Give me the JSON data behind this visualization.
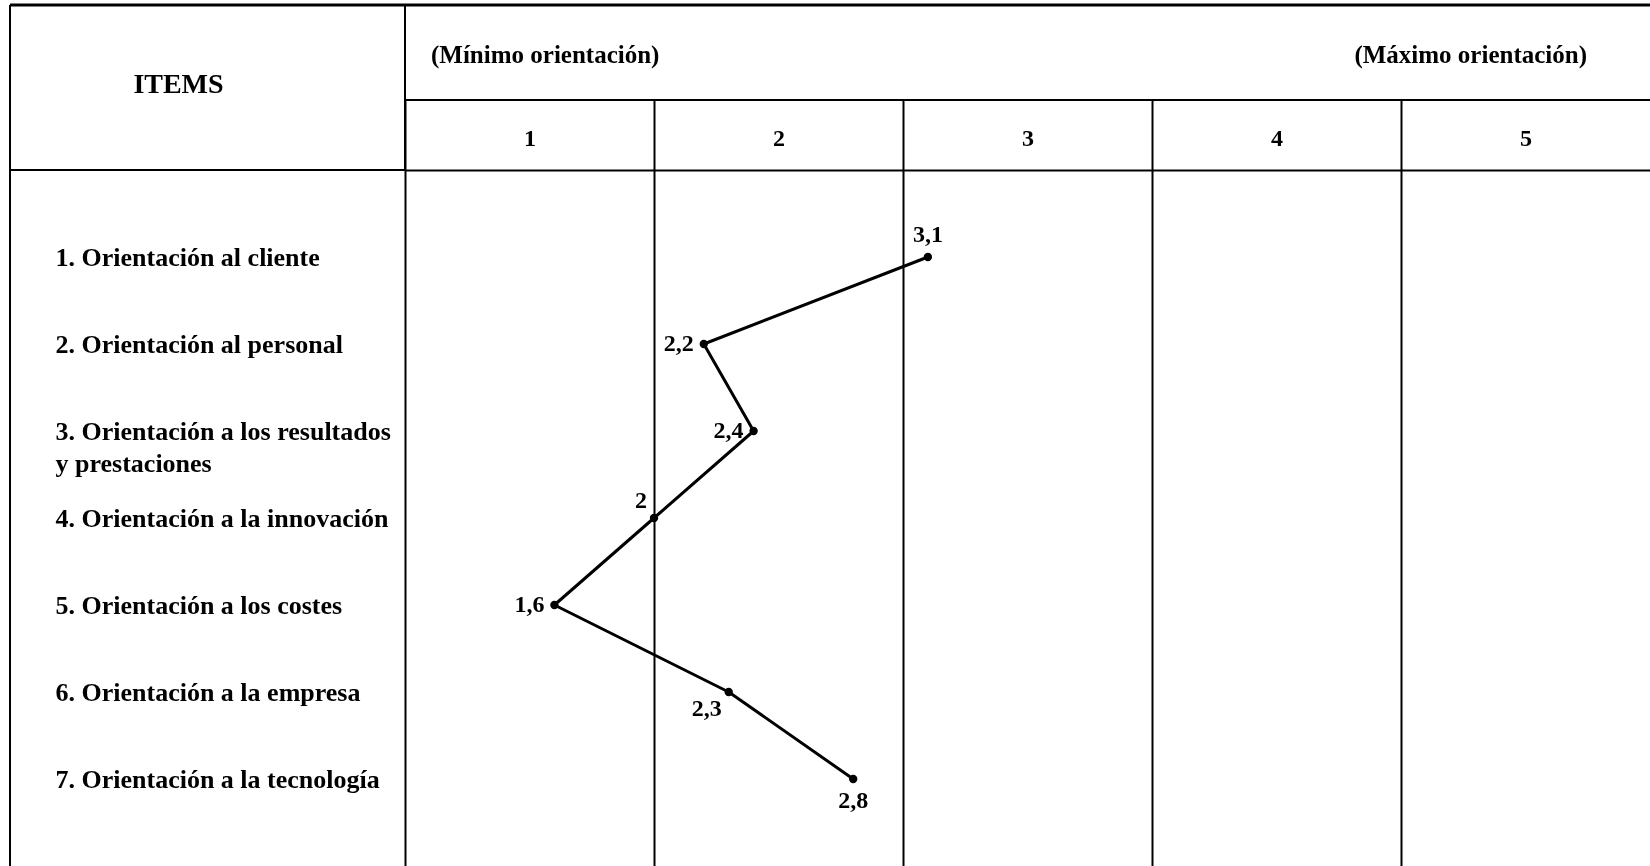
{
  "chart_data": {
    "type": "line",
    "orientation": "horizontal",
    "ylabel": "ITEMS",
    "annotations": [
      "(Mínimo orientación)",
      "(Máximo orientación)"
    ],
    "categories": [
      "1. Orientación al cliente",
      "2. Orientación al personal",
      "3. Orientación a los resultados y prestaciones",
      "4. Orientación a la innovación",
      "5. Orientación a los costes",
      "6. Orientación a la empresa",
      "7. Orientación a la tecnología"
    ],
    "values": [
      3.1,
      2.2,
      2.4,
      2,
      1.6,
      2.3,
      2.8
    ],
    "value_labels": [
      "3,1",
      "2,2",
      "2,4",
      "2",
      "1,6",
      "2,3",
      "2,8"
    ],
    "color": "#000000",
    "marker": "circle",
    "line_style": "solid",
    "xlim": [
      1,
      6
    ],
    "xticks": [
      {
        "value": 1,
        "label": null
      },
      {
        "value": 1.5,
        "label": "1"
      },
      {
        "value": 2,
        "label": null
      },
      {
        "value": 2.5,
        "label": "2"
      },
      {
        "value": 3,
        "label": null
      },
      {
        "value": 3.5,
        "label": "3"
      },
      {
        "value": 4,
        "label": null
      },
      {
        "value": 4.5,
        "label": "4"
      },
      {
        "value": 5,
        "label": null
      },
      {
        "value": 5.5,
        "label": "5"
      }
    ],
    "grid": "x"
  }
}
